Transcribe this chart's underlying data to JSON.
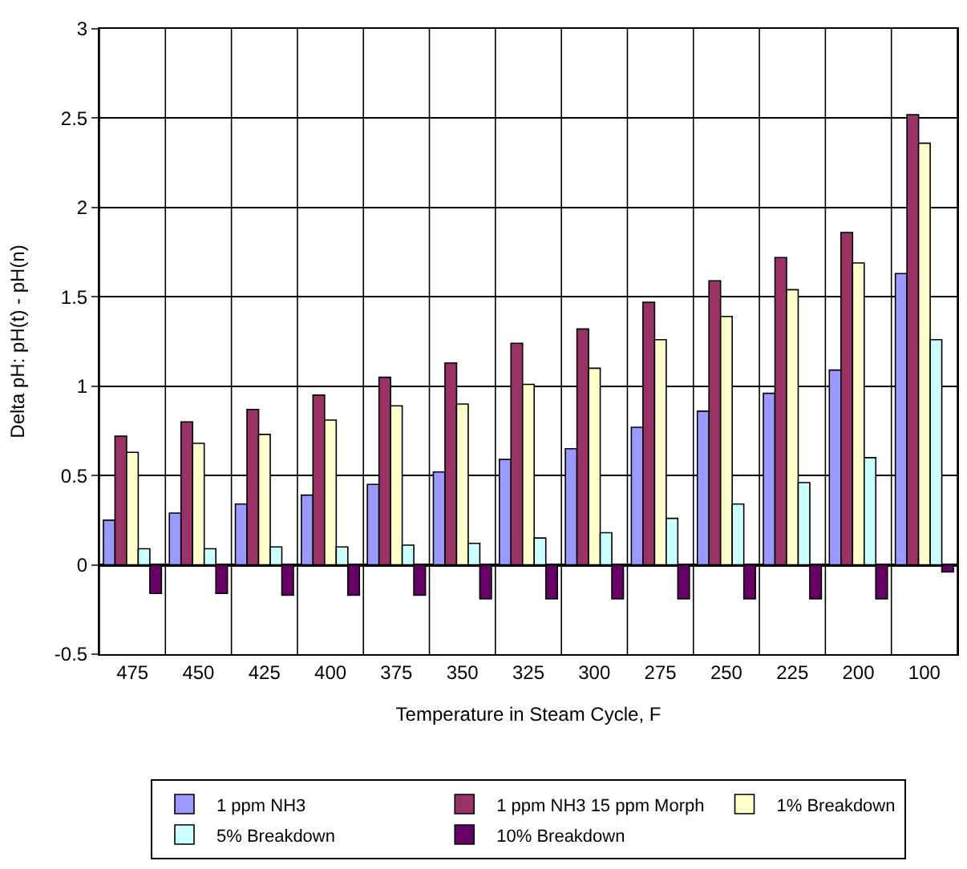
{
  "chart_data": {
    "type": "bar",
    "xlabel": "Temperature in Steam Cycle, F",
    "ylabel": "Delta pH: pH(t) - pH(n)",
    "categories": [
      "475",
      "450",
      "425",
      "400",
      "375",
      "350",
      "325",
      "300",
      "275",
      "250",
      "225",
      "200",
      "100"
    ],
    "series": [
      {
        "name": "1 ppm NH3",
        "color": "#9999ff",
        "values": [
          0.25,
          0.29,
          0.34,
          0.39,
          0.45,
          0.52,
          0.59,
          0.65,
          0.77,
          0.86,
          0.96,
          1.09,
          1.63
        ]
      },
      {
        "name": "1 ppm NH3 15 ppm Morph",
        "color": "#993366",
        "values": [
          0.72,
          0.8,
          0.87,
          0.95,
          1.05,
          1.13,
          1.24,
          1.32,
          1.47,
          1.59,
          1.72,
          1.86,
          2.52
        ]
      },
      {
        "name": "1% Breakdown",
        "color": "#ffffcc",
        "values": [
          0.63,
          0.68,
          0.73,
          0.81,
          0.89,
          0.9,
          1.01,
          1.1,
          1.26,
          1.39,
          1.54,
          1.69,
          2.36
        ]
      },
      {
        "name": "5% Breakdown",
        "color": "#ccffff",
        "values": [
          0.09,
          0.09,
          0.1,
          0.1,
          0.11,
          0.12,
          0.15,
          0.18,
          0.26,
          0.34,
          0.46,
          0.6,
          1.26
        ]
      },
      {
        "name": "10% Breakdown",
        "color": "#660066",
        "values": [
          -0.16,
          -0.16,
          -0.17,
          -0.17,
          -0.17,
          -0.19,
          -0.19,
          -0.19,
          -0.19,
          -0.19,
          -0.19,
          -0.19,
          -0.04
        ]
      }
    ],
    "ylim": [
      -0.5,
      3
    ],
    "yticks": [
      -0.5,
      0,
      0.5,
      1,
      1.5,
      2,
      2.5,
      3
    ],
    "grid": true,
    "legend": "bottom"
  }
}
